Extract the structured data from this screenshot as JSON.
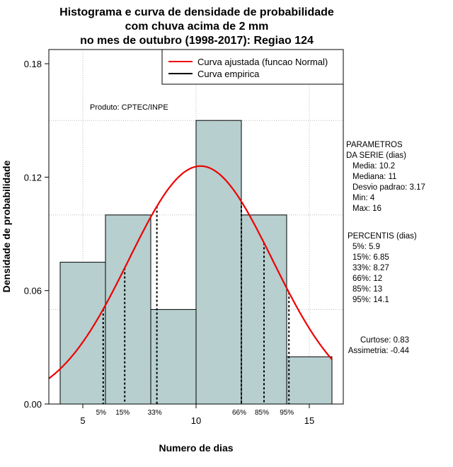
{
  "chart_data": {
    "type": "bar",
    "title": [
      "Histograma e curva de densidade de probabilidade",
      "com chuva acima de 2 mm",
      "no mes de outubro (1998-2017): Regiao 124"
    ],
    "xlabel": "Numero de dias",
    "ylabel": "Densidade de probabilidade",
    "xlim": [
      3.5,
      16.5
    ],
    "ylim": [
      0,
      0.1875
    ],
    "xticks": [
      5,
      10,
      15
    ],
    "xtick_labels": [
      "5",
      "10",
      "15"
    ],
    "yticks": [
      0.0,
      0.06,
      0.12,
      0.18
    ],
    "ytick_labels": [
      "0.00",
      "0.06",
      "0.12",
      "0.18"
    ],
    "grid_x": [
      5,
      10,
      15
    ],
    "grid_y": [
      0.05,
      0.1,
      0.15
    ],
    "bins": [
      {
        "from": 4,
        "to": 6,
        "density": 0.075
      },
      {
        "from": 6,
        "to": 8,
        "density": 0.1
      },
      {
        "from": 8,
        "to": 10,
        "density": 0.05
      },
      {
        "from": 10,
        "to": 12,
        "density": 0.15
      },
      {
        "from": 12,
        "to": 14,
        "density": 0.1
      },
      {
        "from": 14,
        "to": 16,
        "density": 0.025
      }
    ],
    "normal_fit": {
      "mean": 10.2,
      "sd": 3.17
    },
    "percentile_lines": [
      {
        "label": "5%",
        "x": 5.9
      },
      {
        "label": "15%",
        "x": 6.85
      },
      {
        "label": "33%",
        "x": 8.27
      },
      {
        "label": "66%",
        "x": 12
      },
      {
        "label": "85%",
        "x": 13
      },
      {
        "label": "95%",
        "x": 14.1
      }
    ],
    "legend": {
      "position": "top-right",
      "entries": [
        {
          "label": "Curva ajustada (funcao Normal)",
          "color": "#ee0000"
        },
        {
          "label": "Curva empirica",
          "color": "#000000"
        }
      ]
    },
    "annotation": "Produto: CPTEC/INPE",
    "side_panel": {
      "parametros": [
        "PARAMETROS",
        "DA SERIE (dias)",
        "Media: 10.2",
        "Mediana: 11",
        "Desvio padrao: 3.17",
        "Min: 4",
        "Max: 16"
      ],
      "percentis": [
        "PERCENTIS (dias)",
        "5%: 5.9",
        "15%: 6.85",
        "33%: 8.27",
        "66%: 12",
        "85%: 13",
        "95%: 14.1"
      ],
      "forma": [
        "Curtose: 0.83",
        "Assimetria: -0.44"
      ]
    },
    "colors": {
      "bar_fill": "#b7cfcf",
      "fit": "#ee0000",
      "grid": "#b8b8b8"
    }
  }
}
